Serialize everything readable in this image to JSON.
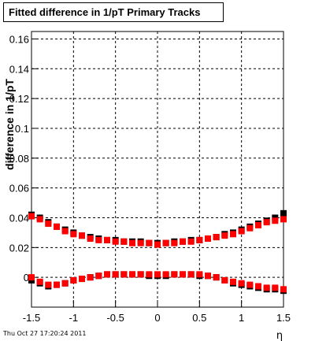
{
  "chart_data": {
    "type": "scatter",
    "title": "Fitted difference in 1/pT  Primary Tracks",
    "xlabel": "η",
    "ylabel": "difference in 1/pT",
    "xlim": [
      -1.5,
      1.5
    ],
    "ylim": [
      -0.02,
      0.165
    ],
    "grid": true,
    "x_ticks": [
      -1.5,
      -1,
      -0.5,
      0,
      0.5,
      1,
      1.5
    ],
    "x_tick_labels": [
      "-1.5",
      "-1",
      "-0.5",
      "0",
      "0.5",
      "1",
      "1.5"
    ],
    "y_ticks": [
      0,
      0.02,
      0.04,
      0.06,
      0.08,
      0.1,
      0.12,
      0.14,
      0.16
    ],
    "y_tick_labels": [
      "0",
      "0.02",
      "0.04",
      "0.06",
      "0.08",
      "0.1",
      "0.12",
      "0.14",
      "0.16"
    ],
    "series": [
      {
        "color": "#000000",
        "points": [
          [
            -1.5,
            0.042
          ],
          [
            -1.4,
            0.04
          ],
          [
            -1.3,
            0.037
          ],
          [
            -1.2,
            0.034
          ],
          [
            -1.1,
            0.032
          ],
          [
            -1.0,
            0.03
          ],
          [
            -0.9,
            0.028
          ],
          [
            -0.8,
            0.027
          ],
          [
            -0.7,
            0.026
          ],
          [
            -0.6,
            0.025
          ],
          [
            -0.5,
            0.025
          ],
          [
            -0.4,
            0.024
          ],
          [
            -0.3,
            0.024
          ],
          [
            -0.2,
            0.024
          ],
          [
            -0.1,
            0.023
          ],
          [
            0.0,
            0.023
          ],
          [
            0.1,
            0.023
          ],
          [
            0.2,
            0.024
          ],
          [
            0.3,
            0.024
          ],
          [
            0.4,
            0.025
          ],
          [
            0.5,
            0.025
          ],
          [
            0.6,
            0.026
          ],
          [
            0.7,
            0.027
          ],
          [
            0.8,
            0.029
          ],
          [
            0.9,
            0.03
          ],
          [
            1.0,
            0.032
          ],
          [
            1.1,
            0.034
          ],
          [
            1.2,
            0.036
          ],
          [
            1.3,
            0.038
          ],
          [
            1.4,
            0.04
          ],
          [
            1.5,
            0.043
          ]
        ]
      },
      {
        "color": "#ff0000",
        "points": [
          [
            -1.5,
            0.041
          ],
          [
            -1.4,
            0.039
          ],
          [
            -1.3,
            0.036
          ],
          [
            -1.2,
            0.034
          ],
          [
            -1.1,
            0.031
          ],
          [
            -1.0,
            0.029
          ],
          [
            -0.9,
            0.028
          ],
          [
            -0.8,
            0.026
          ],
          [
            -0.7,
            0.025
          ],
          [
            -0.6,
            0.025
          ],
          [
            -0.5,
            0.024
          ],
          [
            -0.4,
            0.024
          ],
          [
            -0.3,
            0.023
          ],
          [
            -0.2,
            0.023
          ],
          [
            -0.1,
            0.023
          ],
          [
            0.0,
            0.022
          ],
          [
            0.1,
            0.023
          ],
          [
            0.2,
            0.023
          ],
          [
            0.3,
            0.024
          ],
          [
            0.4,
            0.024
          ],
          [
            0.5,
            0.025
          ],
          [
            0.6,
            0.026
          ],
          [
            0.7,
            0.027
          ],
          [
            0.8,
            0.028
          ],
          [
            0.9,
            0.029
          ],
          [
            1.0,
            0.031
          ],
          [
            1.1,
            0.033
          ],
          [
            1.2,
            0.035
          ],
          [
            1.3,
            0.037
          ],
          [
            1.4,
            0.038
          ],
          [
            1.5,
            0.039
          ]
        ]
      },
      {
        "color": "#000000",
        "points": [
          [
            -1.5,
            -0.002
          ],
          [
            -1.4,
            -0.004
          ],
          [
            -1.3,
            -0.006
          ],
          [
            -1.2,
            -0.005
          ],
          [
            -1.1,
            -0.004
          ],
          [
            -1.0,
            -0.002
          ],
          [
            -0.9,
            -0.001
          ],
          [
            -0.8,
            0.0
          ],
          [
            -0.7,
            0.001
          ],
          [
            -0.6,
            0.002
          ],
          [
            -0.5,
            0.002
          ],
          [
            -0.4,
            0.002
          ],
          [
            -0.3,
            0.002
          ],
          [
            -0.2,
            0.002
          ],
          [
            -0.1,
            0.001
          ],
          [
            0.0,
            0.001
          ],
          [
            0.1,
            0.001
          ],
          [
            0.2,
            0.002
          ],
          [
            0.3,
            0.002
          ],
          [
            0.4,
            0.002
          ],
          [
            0.5,
            0.001
          ],
          [
            0.6,
            0.001
          ],
          [
            0.7,
            0.0
          ],
          [
            0.8,
            -0.002
          ],
          [
            0.9,
            -0.004
          ],
          [
            1.0,
            -0.005
          ],
          [
            1.1,
            -0.006
          ],
          [
            1.2,
            -0.007
          ],
          [
            1.3,
            -0.008
          ],
          [
            1.4,
            -0.008
          ],
          [
            1.5,
            -0.009
          ]
        ]
      },
      {
        "color": "#ff0000",
        "points": [
          [
            -1.5,
            0.0
          ],
          [
            -1.4,
            -0.003
          ],
          [
            -1.3,
            -0.005
          ],
          [
            -1.2,
            -0.005
          ],
          [
            -1.1,
            -0.004
          ],
          [
            -1.0,
            -0.002
          ],
          [
            -0.9,
            -0.001
          ],
          [
            -0.8,
            0.0
          ],
          [
            -0.7,
            0.001
          ],
          [
            -0.6,
            0.002
          ],
          [
            -0.5,
            0.002
          ],
          [
            -0.4,
            0.002
          ],
          [
            -0.3,
            0.002
          ],
          [
            -0.2,
            0.002
          ],
          [
            -0.1,
            0.002
          ],
          [
            0.0,
            0.002
          ],
          [
            0.1,
            0.002
          ],
          [
            0.2,
            0.002
          ],
          [
            0.3,
            0.002
          ],
          [
            0.4,
            0.002
          ],
          [
            0.5,
            0.002
          ],
          [
            0.6,
            0.001
          ],
          [
            0.7,
            0.0
          ],
          [
            0.8,
            -0.002
          ],
          [
            0.9,
            -0.003
          ],
          [
            1.0,
            -0.004
          ],
          [
            1.1,
            -0.005
          ],
          [
            1.2,
            -0.006
          ],
          [
            1.3,
            -0.007
          ],
          [
            1.4,
            -0.007
          ],
          [
            1.5,
            -0.008
          ]
        ]
      }
    ]
  },
  "footer": {
    "timestamp": "Thu Oct 27 17:20:24 2011"
  }
}
